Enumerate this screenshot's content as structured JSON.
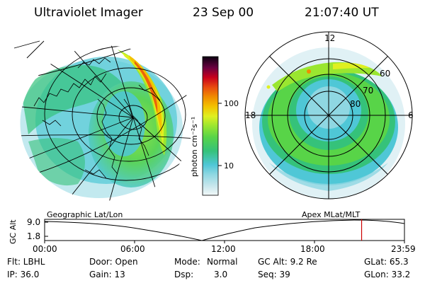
{
  "header": {
    "instrument": "Ultraviolet Imager",
    "date": "23 Sep 00",
    "time": "21:07:40 UT"
  },
  "colorbar": {
    "label": "photon cm⁻²s⁻¹",
    "ticks": [
      "100",
      "10"
    ],
    "scale": "log",
    "colors": [
      "#e8f4f4",
      "#c6e6ec",
      "#8fd7e2",
      "#4fc7d6",
      "#35c27a",
      "#58d448",
      "#9ae630",
      "#dff020",
      "#f3c200",
      "#f08c00",
      "#e84a10",
      "#c8001c",
      "#8c0030",
      "#4a0040",
      "#0a0010"
    ]
  },
  "left_map": {
    "projection": "Geographic Lat/Lon"
  },
  "right_map": {
    "projection": "Apex MLat/MLT",
    "mlt_labels": {
      "top": "12",
      "left": "18",
      "right": "6"
    },
    "lat_labels": [
      "80",
      "70",
      "60"
    ]
  },
  "altitude_plot": {
    "ylabel": "GC Alt",
    "yticks": [
      "9.0",
      "1.8"
    ],
    "xticks": [
      "00:00",
      "06:00",
      "12:00",
      "18:00",
      "23:59"
    ],
    "left_caption": "Geographic Lat/Lon",
    "right_caption": "Apex MLat/MLT",
    "current_time_marker": "21:07:40",
    "marker_color": "#cc0000"
  },
  "info": {
    "flt": "Flt: LBHL",
    "ip": "IP: 36.0",
    "door": "Door: Open",
    "gain": "Gain: 13",
    "mode_label": "Mode:",
    "mode_value": "Normal",
    "dsp_label": "Dsp:",
    "dsp_value": "3.0",
    "gcalt": "GC Alt: 9.2 Re",
    "seq": "Seq: 39",
    "glat": "GLat: 65.3",
    "glon": "GLon: 33.2"
  }
}
